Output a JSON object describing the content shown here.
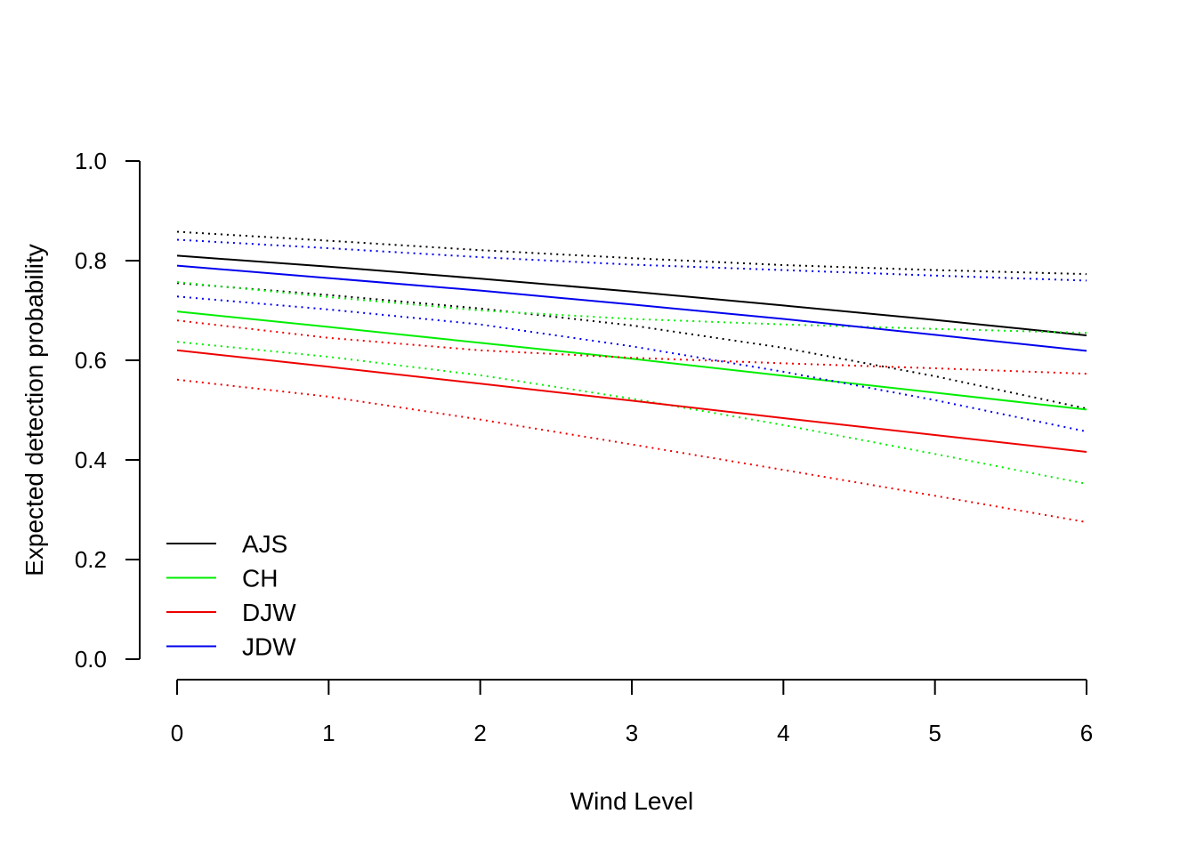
{
  "chart_data": {
    "type": "line",
    "title": "",
    "xlabel": "Wind Level",
    "ylabel": "Expected detection probability",
    "xlim": [
      0,
      6
    ],
    "ylim": [
      0,
      1
    ],
    "x_ticks": [
      "0",
      "1",
      "2",
      "3",
      "4",
      "5",
      "6"
    ],
    "y_ticks": [
      "0.0",
      "0.2",
      "0.4",
      "0.6",
      "0.8",
      "1.0"
    ],
    "grid": false,
    "legend_position": "bottom-left",
    "x": [
      0,
      1,
      2,
      3,
      4,
      5,
      6
    ],
    "series": [
      {
        "name": "AJS",
        "color": "#000000",
        "values": [
          0.81,
          0.788,
          0.764,
          0.738,
          0.71,
          0.681,
          0.65
        ],
        "lower": [
          0.755,
          0.731,
          0.704,
          0.67,
          0.625,
          0.568,
          0.503
        ],
        "upper": [
          0.858,
          0.84,
          0.821,
          0.805,
          0.791,
          0.781,
          0.773
        ]
      },
      {
        "name": "CH",
        "color": "#00ee00",
        "values": [
          0.698,
          0.667,
          0.635,
          0.603,
          0.569,
          0.535,
          0.501
        ],
        "lower": [
          0.637,
          0.607,
          0.57,
          0.523,
          0.47,
          0.412,
          0.352
        ],
        "upper": [
          0.757,
          0.727,
          0.7,
          0.683,
          0.672,
          0.663,
          0.655
        ]
      },
      {
        "name": "DJW",
        "color": "#ee0000",
        "values": [
          0.62,
          0.587,
          0.553,
          0.519,
          0.484,
          0.45,
          0.416
        ],
        "lower": [
          0.561,
          0.527,
          0.481,
          0.431,
          0.38,
          0.328,
          0.275
        ],
        "upper": [
          0.68,
          0.645,
          0.62,
          0.605,
          0.594,
          0.584,
          0.573
        ]
      },
      {
        "name": "JDW",
        "color": "#0000ee",
        "values": [
          0.79,
          0.765,
          0.74,
          0.712,
          0.683,
          0.651,
          0.619
        ],
        "lower": [
          0.728,
          0.702,
          0.672,
          0.628,
          0.577,
          0.52,
          0.457
        ],
        "upper": [
          0.842,
          0.825,
          0.807,
          0.792,
          0.781,
          0.77,
          0.76
        ]
      }
    ]
  }
}
